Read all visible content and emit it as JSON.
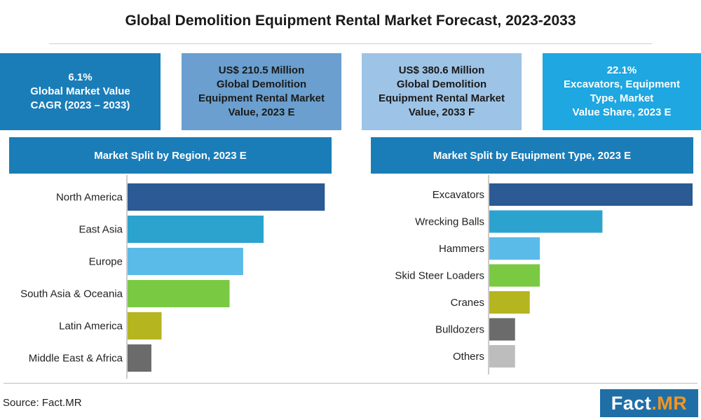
{
  "title": "Global Demolition Equipment Rental Market Forecast, 2023-2033",
  "stats": [
    {
      "lines": [
        "6.1%",
        "Global Market Value",
        "CAGR (2023 – 2033)"
      ],
      "bg": "#1b7db8",
      "fg": "#ffffff"
    },
    {
      "lines": [
        "US$ 210.5 Million",
        "Global Demolition",
        "Equipment Rental Market",
        "Value, 2023 E"
      ],
      "bg": "#6a9fcf",
      "fg": "#1a1a1a"
    },
    {
      "lines": [
        "US$ 380.6 Million",
        "Global Demolition",
        "Equipment Rental Market",
        "Value, 2033 F"
      ],
      "bg": "#9dc3e6",
      "fg": "#1a1a1a"
    },
    {
      "lines": [
        "22.1%",
        "Excavators, Equipment",
        "Type, Market",
        "Value Share, 2023 E"
      ],
      "bg": "#1ea7e1",
      "fg": "#ffffff"
    }
  ],
  "panels": {
    "region_header": "Market Split by Region, 2023 E",
    "equipment_header": "Market Split by Equipment Type, 2023 E",
    "header_color": "#1b7db8"
  },
  "chart_data": [
    {
      "type": "bar",
      "orientation": "horizontal",
      "title": "Market Split by Region, 2023 E",
      "categories": [
        "North America",
        "East Asia",
        "Europe",
        "South Asia & Oceania",
        "Latin America",
        "Middle East & Africa"
      ],
      "values": [
        29,
        20,
        17,
        15,
        5,
        3.5
      ],
      "colors": [
        "#2b5a94",
        "#2ca3cf",
        "#5bbbe8",
        "#7ac943",
        "#b5b51f",
        "#6b6b6b"
      ],
      "xlim": [
        0,
        30
      ]
    },
    {
      "type": "bar",
      "orientation": "horizontal",
      "title": "Market Split by Equipment Type, 2023 E",
      "categories": [
        "Excavators",
        "Wrecking Balls",
        "Hammers",
        "Skid Steer Loaders",
        "Cranes",
        "Bulldozers",
        "Others"
      ],
      "values": [
        22.1,
        12.3,
        5.5,
        5.5,
        4.4,
        2.8,
        2.8
      ],
      "colors": [
        "#2b5a94",
        "#2ca3cf",
        "#5bbbe8",
        "#7ac943",
        "#b5b51f",
        "#6b6b6b",
        "#bdbdbd"
      ],
      "xlim": [
        0,
        22.1
      ]
    }
  ],
  "source": "Source: Fact.MR",
  "logo": {
    "part1": "Fact",
    "part2": ".MR"
  }
}
